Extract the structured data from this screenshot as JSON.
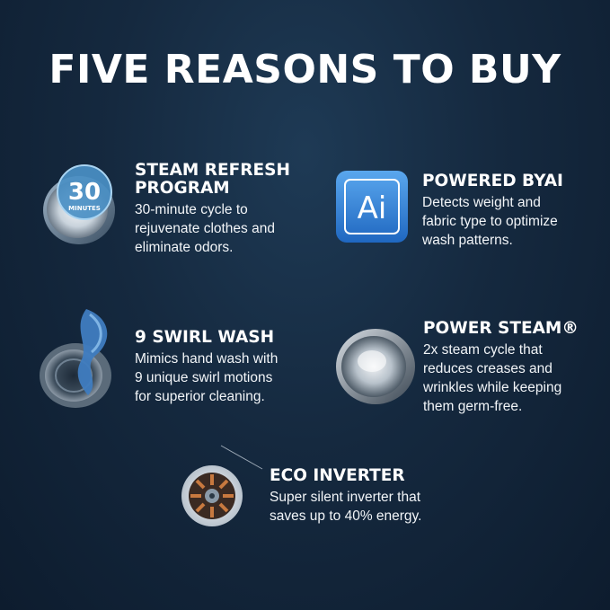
{
  "title": "FIVE REASONS TO BUY",
  "features": [
    {
      "heading": "STEAM REFRESH\nPROGRAM",
      "description": "30-minute cycle to\nrejuvenate clothes and\neliminate odors.",
      "icon": "drum-30-minutes-icon",
      "badge_number": "30",
      "badge_text": "MINUTES"
    },
    {
      "heading": "POWERED BYAI",
      "description": "Detects weight and\nfabric type to optimize\nwash patterns.",
      "icon": "ai-chip-icon",
      "badge_text": "Ai"
    },
    {
      "heading": "9 SWIRL WASH",
      "description": "Mimics hand wash with\n9 unique swirl motions\nfor superior cleaning.",
      "icon": "swirl-drum-icon"
    },
    {
      "heading": "POWER STEAM®",
      "description": "2x steam cycle that\nreduces creases and\nwrinkles while keeping\nthem germ-free.",
      "icon": "steam-drum-icon"
    },
    {
      "heading": "ECO INVERTER",
      "description": "Super silent inverter that\nsaves up to 40% energy.",
      "icon": "inverter-motor-icon"
    }
  ],
  "colors": {
    "background": "#15293f",
    "ai_badge": "#2f7fd6",
    "drum_blue": "#4a8fc4",
    "cloth_blue": "#3f7cc0"
  }
}
